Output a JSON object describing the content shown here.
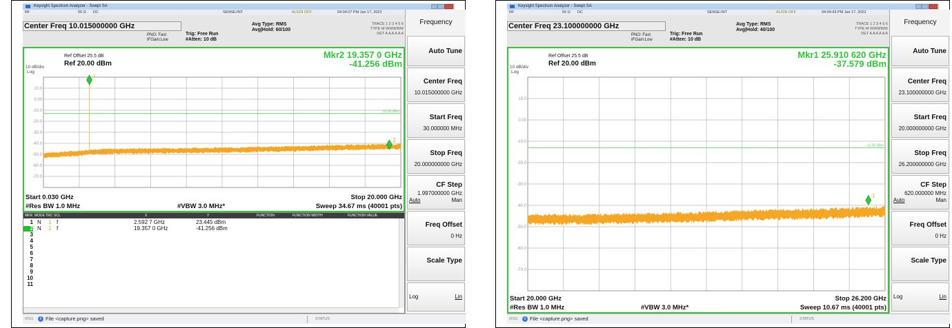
{
  "left": {
    "window_title": "Keysight Spectrum Analyzer - Swept SA",
    "status": {
      "rf": "RF",
      "impedance": "50 Ω",
      "coupling": "DC",
      "source": "SENSE:INT",
      "align": "ALIGN OFF",
      "datetime": "04:04:27 PM Jan 17, 2022"
    },
    "center_freq": "Center Freq 10.015000000 GHz",
    "pno": "PNO: Fast",
    "ifgain": "IFGain:Low",
    "trig": "Trig: Free Run",
    "atten": "#Atten: 10 dB",
    "avg_type": "Avg Type: RMS",
    "avg_hold": "Avg|Hold: 60/100",
    "trace_lines": [
      "TRACE 1 2 3 4 5 6",
      "TYPE M WWWWW",
      "DET A A A A A A"
    ],
    "ref_offset": "Ref Offset 25.5 dB",
    "ref_level": "Ref 20.00 dBm",
    "scale": "10 dB/div",
    "log": "Log",
    "marker_line1": "Mkr2 19.357 0 GHz",
    "marker_line2": "-41.256 dBm",
    "start": "Start 0.030 GHz",
    "stop": "Stop 20.000 GHz",
    "rbw": "#Res BW 1.0 MHz",
    "vbw": "#VBW 3.0 MHz*",
    "sweep": "Sweep  34.67 ms (40001 pts)",
    "limit_label": "-13.00 dBm",
    "table": {
      "headers": [
        "MKR",
        "MODE",
        "TRC",
        "SCL",
        "X",
        "Y",
        "FUNCTION",
        "FUNCTION WIDTH",
        "FUNCTION VALUE"
      ],
      "rows": [
        {
          "n": "1",
          "mode": "N",
          "trc": "1",
          "scl": "f",
          "x": "2.592 7 GHz",
          "y": "23.445 dBm"
        },
        {
          "n": "2",
          "mode": "N",
          "trc": "1",
          "scl": "f",
          "x": "19.357 0 GHz",
          "y": "-41.256 dBm"
        },
        {
          "n": "3"
        },
        {
          "n": "4"
        },
        {
          "n": "5"
        },
        {
          "n": "6"
        },
        {
          "n": "7"
        },
        {
          "n": "8"
        },
        {
          "n": "9"
        },
        {
          "n": "10"
        },
        {
          "n": "11"
        }
      ]
    },
    "msg": "MSG",
    "file_msg": "File <capture.png> saved",
    "status_label": "STATUS"
  },
  "right": {
    "window_title": "Keysight Spectrum Analyzer - Swept SA",
    "status": {
      "rf": "RF",
      "impedance": "50 Ω",
      "coupling": "DC",
      "source": "SENSE:INT",
      "align": "ALIGN OFF",
      "datetime": "04:04:43 PM Jan 17, 2022"
    },
    "center_freq": "Center Freq 23.100000000 GHz",
    "pno": "PNO: Fast",
    "ifgain": "IFGain:Low",
    "trig": "Trig: Free Run",
    "atten": "#Atten: 10 dB",
    "avg_type": "Avg Type: RMS",
    "avg_hold": "Avg|Hold: 40/100",
    "trace_lines": [
      "TRACE 1 2 3 4 5 6",
      "TYPE M WWWWW",
      "DET A A A A A A"
    ],
    "ref_offset": "Ref Offset 25.5 dB",
    "ref_level": "Ref 20.00 dBm",
    "scale": "10 dB/div",
    "log": "Log",
    "marker_line1": "Mkr1 25.910 620 GHz",
    "marker_line2": "-37.579 dBm",
    "start": "Start 20.000 GHz",
    "stop": "Stop 26.200 GHz",
    "rbw": "#Res BW 1.0 MHz",
    "vbw": "#VBW 3.0 MHz*",
    "sweep": "Sweep  10.67 ms (40001 pts)",
    "limit_label": "-13.00 dBm",
    "msg": "MSG",
    "file_msg": "File <capture.png> saved",
    "status_label": "STATUS"
  },
  "softkeys": {
    "menu": "Frequency",
    "auto_tune": "Auto Tune",
    "center_freq": "Center Freq",
    "start_freq": "Start Freq",
    "stop_freq": "Stop Freq",
    "cf_step": "CF Step",
    "auto": "Auto",
    "man": "Man",
    "freq_offset": "Freq Offset",
    "freq_offset_val": "0 Hz",
    "scale_type": "Scale Type",
    "log": "Log",
    "lin": "Lin"
  },
  "softkey_values_left": {
    "center": "10.015000000 GHz",
    "start": "30.000000 MHz",
    "stop": "20.000000000 GHz",
    "cfstep": "1.997000000 GHz"
  },
  "softkey_values_right": {
    "center": "23.100000000 GHz",
    "start": "20.000000000 GHz",
    "stop": "26.200000000 GHz",
    "cfstep": "620.000000 MHz"
  },
  "chart_data": [
    {
      "type": "line",
      "x_unit": "GHz",
      "y_unit": "dBm",
      "xlim": [
        0.03,
        20.0
      ],
      "ylim": [
        -80,
        20
      ],
      "y_ticks": [
        "10.0",
        "0.00",
        "-10.0",
        "-20.0",
        "-30.0",
        "-40.0",
        "-50.0",
        "-60.0",
        "-70.0"
      ],
      "limit_line_dbm": -13,
      "trace": [
        [
          0.03,
          -51
        ],
        [
          1.0,
          -50
        ],
        [
          2.0,
          -49
        ],
        [
          2.59,
          -48
        ],
        [
          3.0,
          -47.5
        ],
        [
          5.0,
          -47
        ],
        [
          8.0,
          -46.5
        ],
        [
          11.0,
          -46
        ],
        [
          12.0,
          -45.5
        ],
        [
          14.0,
          -45
        ],
        [
          16.0,
          -44
        ],
        [
          18.0,
          -43.5
        ],
        [
          20.0,
          -43
        ]
      ],
      "spikes": [
        [
          2.5927,
          23.445
        ]
      ],
      "markers": [
        {
          "n": "1",
          "x": 2.5927,
          "y": 23.445
        },
        {
          "n": "2",
          "x": 19.357,
          "y": -41.256
        }
      ]
    },
    {
      "type": "line",
      "x_unit": "GHz",
      "y_unit": "dBm",
      "xlim": [
        20.0,
        26.2
      ],
      "ylim": [
        -80,
        20
      ],
      "y_ticks": [
        "10.0",
        "0.00",
        "-10.0",
        "-20.0",
        "-30.0",
        "-40.0",
        "-50.0",
        "-60.0",
        "-70.0"
      ],
      "limit_line_dbm": -13,
      "trace": [
        [
          20.0,
          -46.5
        ],
        [
          21.0,
          -46.5
        ],
        [
          22.0,
          -46
        ],
        [
          23.0,
          -45.5
        ],
        [
          24.0,
          -44.5
        ],
        [
          25.0,
          -44
        ],
        [
          26.2,
          -43
        ]
      ],
      "markers": [
        {
          "n": "1",
          "x": 25.91062,
          "y": -37.579
        }
      ]
    }
  ],
  "colors": {
    "trace": "#f5a623",
    "grid": "#b8b8b8",
    "marker": "#31c53a",
    "limit": "#6bd36b",
    "spike": "#f0c060"
  }
}
